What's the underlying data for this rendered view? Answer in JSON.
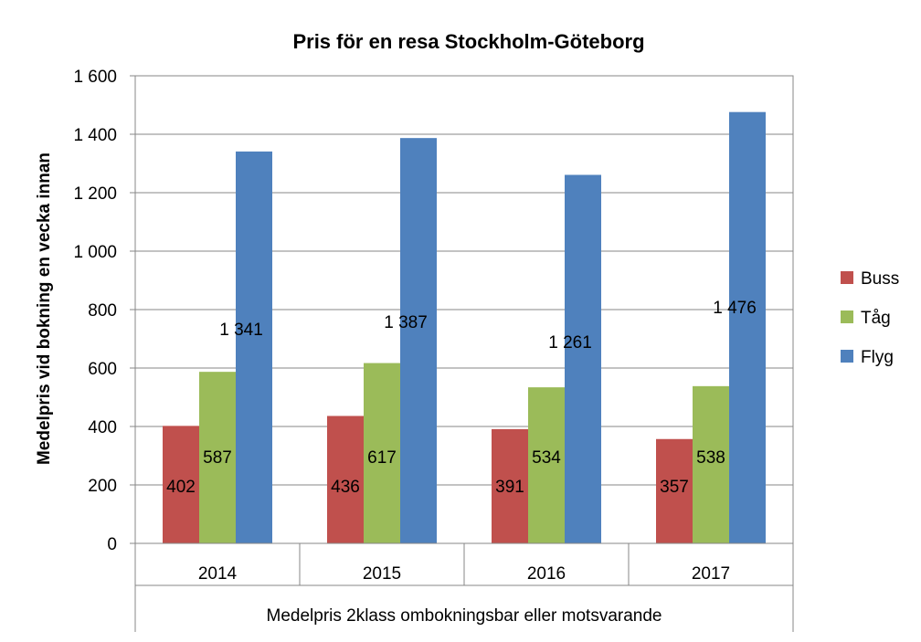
{
  "chart_data": {
    "type": "bar",
    "title": "Pris för en resa Stockholm-Göteborg",
    "ylabel": "Medelpris vid bokning en vecka innan",
    "xlabel": "Medelpris 2klass ombokningsbar eller motsvarande",
    "categories": [
      "2014",
      "2015",
      "2016",
      "2017"
    ],
    "ylim": [
      0,
      1600
    ],
    "yticks": [
      0,
      200,
      400,
      600,
      800,
      1000,
      1200,
      1400,
      1600
    ],
    "ytick_labels": [
      "0",
      "200",
      "400",
      "600",
      "800",
      "1 000",
      "1 200",
      "1 400",
      "1 600"
    ],
    "grid": "horizontal",
    "legend_position": "right",
    "series": [
      {
        "name": "Buss",
        "color": "#c0504d",
        "values": [
          402,
          436,
          391,
          357
        ],
        "labels": [
          "402",
          "436",
          "391",
          "357"
        ]
      },
      {
        "name": "Tåg",
        "color": "#9bbb59",
        "values": [
          587,
          617,
          534,
          538
        ],
        "labels": [
          "587",
          "617",
          "534",
          "538"
        ]
      },
      {
        "name": "Flyg",
        "color": "#4f81bd",
        "values": [
          1341,
          1387,
          1261,
          1476
        ],
        "labels": [
          "1 341",
          "1 387",
          "1 261",
          "1 476"
        ]
      }
    ]
  }
}
